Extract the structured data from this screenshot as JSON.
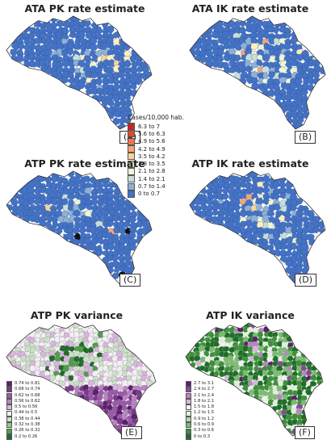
{
  "panels": [
    {
      "title": "ATA PK rate estimate",
      "tag": "(A)"
    },
    {
      "title": "ATA IK rate estimate",
      "tag": "(B)"
    },
    {
      "title": "ATP PK rate estimate",
      "tag": "(C)"
    },
    {
      "title": "ATP IK rate estimate",
      "tag": "(D)"
    },
    {
      "title": "ATP PK variance",
      "tag": "(E)"
    },
    {
      "title": "ATP IK variance",
      "tag": "(F)"
    }
  ],
  "rate_legend": {
    "title": "Cases/10,000 hab.",
    "items": [
      {
        "label": "6.3 to 7",
        "color": "#c8261c"
      },
      {
        "label": "5.6 to 6.3",
        "color": "#de4a2f"
      },
      {
        "label": "4.9 to 5.6",
        "color": "#ee7552"
      },
      {
        "label": "4.2 to 4.9",
        "color": "#f6a578"
      },
      {
        "label": "3.5 to 4.2",
        "color": "#fbd29b"
      },
      {
        "label": "2.8 to 3.5",
        "color": "#fdf0bf"
      },
      {
        "label": "2.1 to 2.8",
        "color": "#eef6d2"
      },
      {
        "label": "1.4 to 2.1",
        "color": "#c8dfd8"
      },
      {
        "label": "0.7 to 1.4",
        "color": "#8fb0d6"
      },
      {
        "label": "0 to 0.7",
        "color": "#4472c4"
      }
    ]
  },
  "pk_variance_legend": {
    "items": [
      {
        "label": "0.74 to 0.81",
        "color": "#5c1f6b"
      },
      {
        "label": "0.68 to 0.74",
        "color": "#7b3a8a"
      },
      {
        "label": "0.62 to 0.68",
        "color": "#9a5aa8"
      },
      {
        "label": "0.56 to 0.62",
        "color": "#b984c2"
      },
      {
        "label": "0.5 to 0.56",
        "color": "#d8b6dc"
      },
      {
        "label": "0.44 to 0.5",
        "color": "#f2f0f2"
      },
      {
        "label": "0.38 to 0.44",
        "color": "#c9e2c4"
      },
      {
        "label": "0.32 to 0.38",
        "color": "#94c78b"
      },
      {
        "label": "0.26 to 0.32",
        "color": "#4f9e4a"
      },
      {
        "label": "0.2 to 0.26",
        "color": "#1f6d28"
      }
    ]
  },
  "ik_variance_legend": {
    "items": [
      {
        "label": "2.7 to 3.1",
        "color": "#5c1f6b"
      },
      {
        "label": "2.4 to 2.7",
        "color": "#8a4a98"
      },
      {
        "label": "2.1 to 2.4",
        "color": "#b984c2"
      },
      {
        "label": "1.8 to 2.1",
        "color": "#d8b6dc"
      },
      {
        "label": "1.5 to 1.8",
        "color": "#f2f0f2"
      },
      {
        "label": "1.2 to 1.5",
        "color": "#e4efe0"
      },
      {
        "label": "0.9 to 1.2",
        "color": "#b6d8ae"
      },
      {
        "label": "0.6 to 0.9",
        "color": "#7dba74"
      },
      {
        "label": "0.3 to 0.6",
        "color": "#3f8f3c"
      },
      {
        "label": "0 to 0.3",
        "color": "#1f6d28"
      }
    ]
  }
}
